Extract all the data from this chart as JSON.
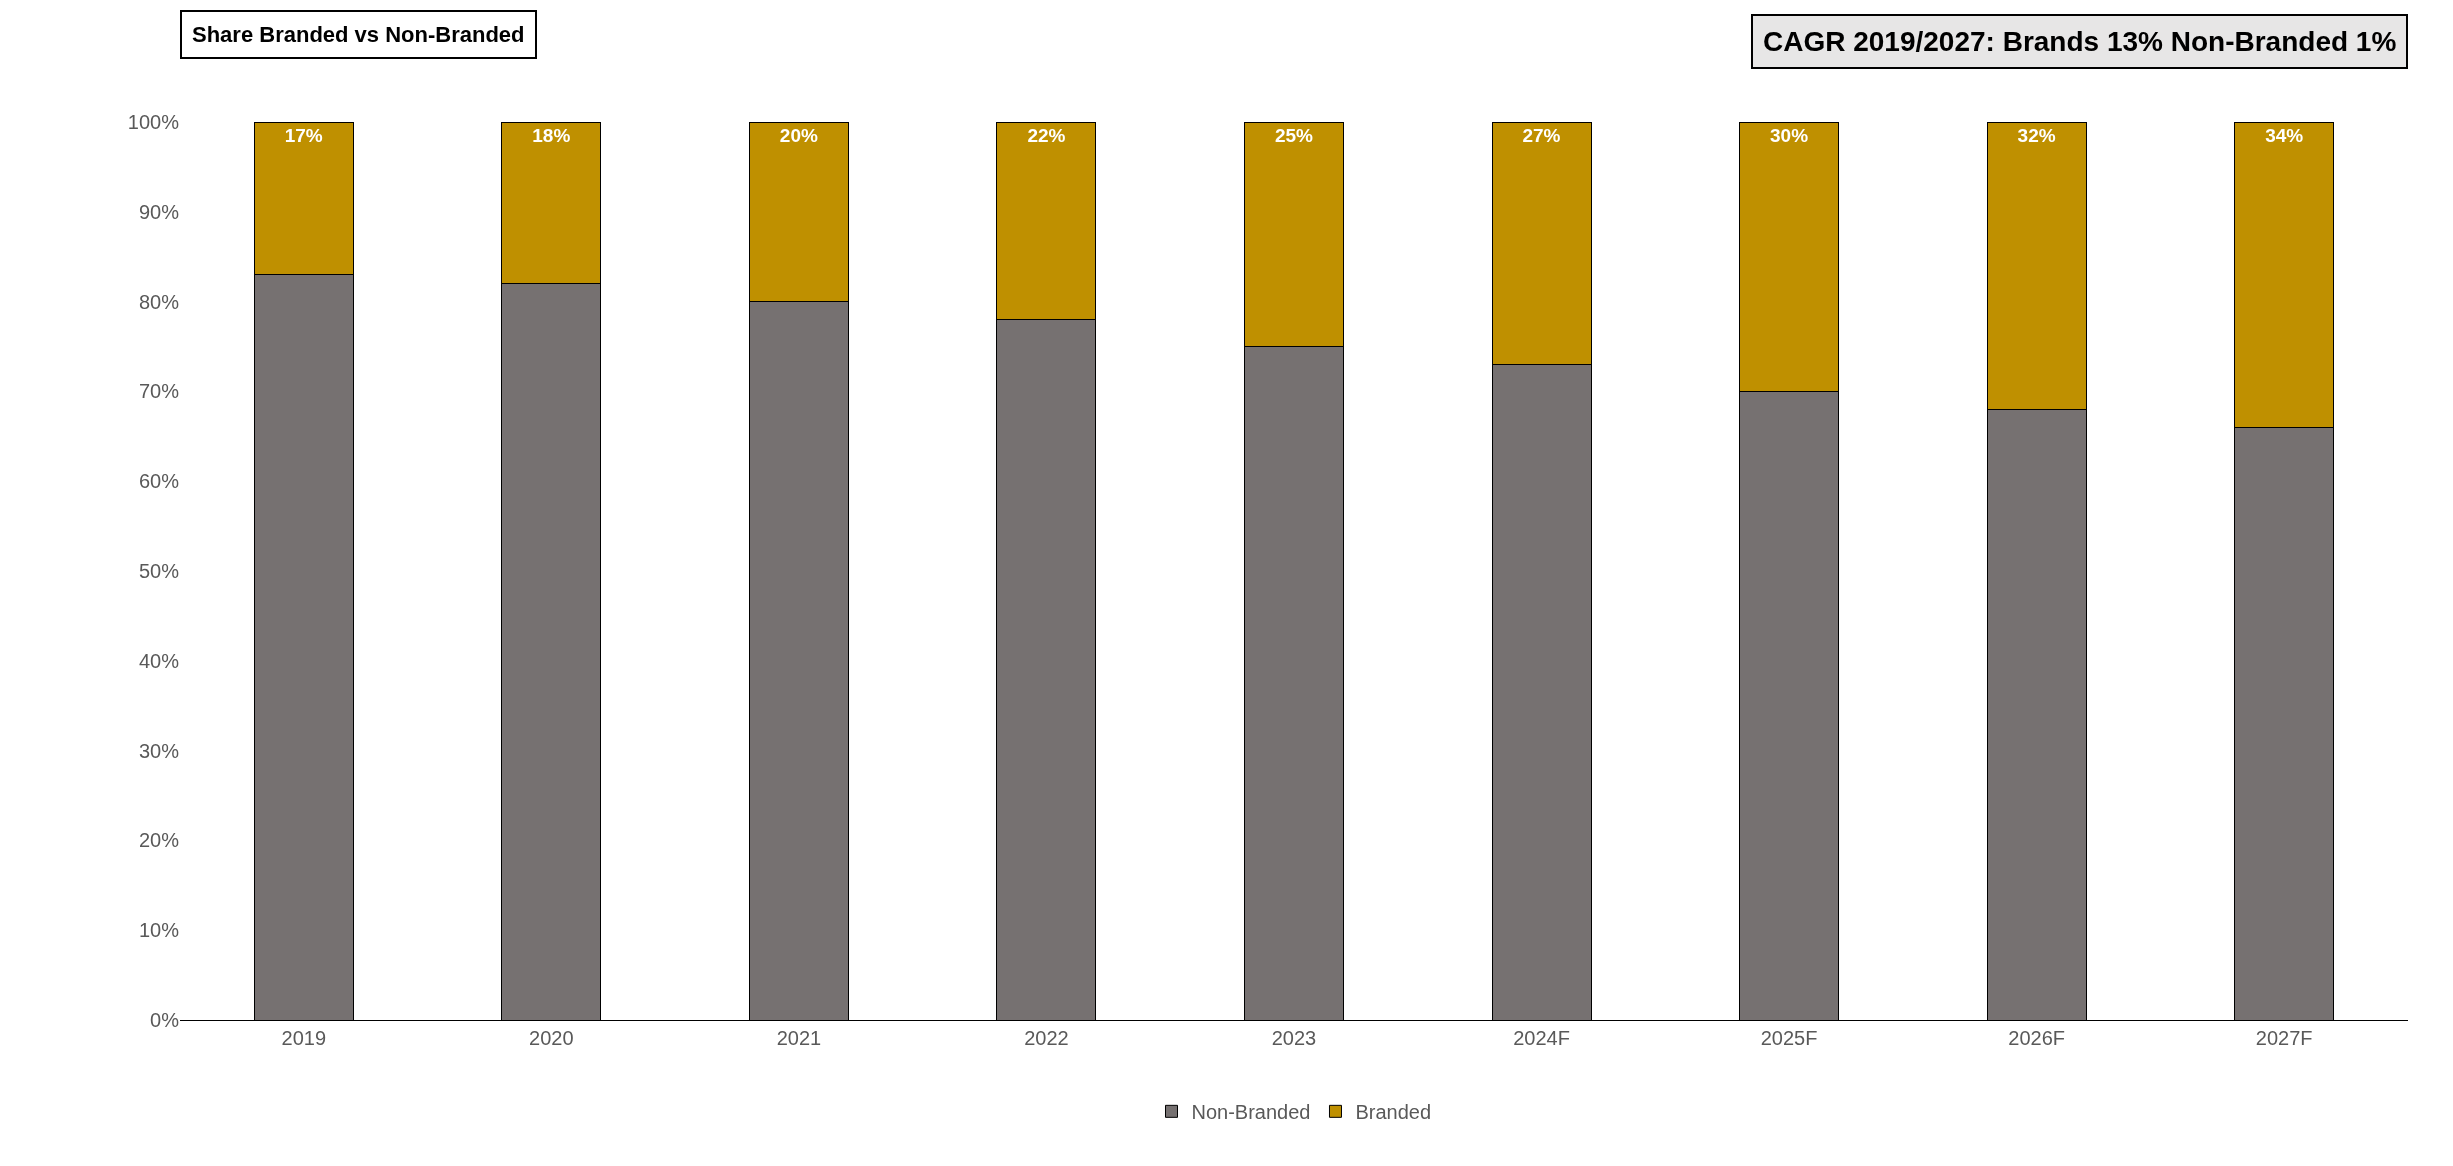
{
  "chart_data": {
    "type": "bar",
    "stacked": true,
    "title": "Share Branded vs Non-Branded",
    "annotations": [
      "CAGR 2019/2027: Brands 13% Non-Branded 1%"
    ],
    "categories": [
      "2019",
      "2020",
      "2021",
      "2022",
      "2023",
      "2024F",
      "2025F",
      "2026F",
      "2027F"
    ],
    "series": [
      {
        "name": "Non-Branded",
        "color": "#767171",
        "values": [
          83,
          82,
          80,
          78,
          75,
          73,
          70,
          68,
          66
        ]
      },
      {
        "name": "Branded",
        "color": "#bf9000",
        "values": [
          17,
          18,
          20,
          22,
          25,
          27,
          30,
          32,
          34
        ],
        "value_labels": [
          "17%",
          "18%",
          "20%",
          "22%",
          "25%",
          "27%",
          "30%",
          "32%",
          "34%"
        ]
      }
    ],
    "ylim": [
      0,
      100
    ],
    "yticks": [
      {
        "value": 0,
        "label": "0%"
      },
      {
        "value": 10,
        "label": "10%"
      },
      {
        "value": 20,
        "label": "20%"
      },
      {
        "value": 30,
        "label": "30%"
      },
      {
        "value": 40,
        "label": "40%"
      },
      {
        "value": 50,
        "label": "50%"
      },
      {
        "value": 60,
        "label": "60%"
      },
      {
        "value": 70,
        "label": "70%"
      },
      {
        "value": 80,
        "label": "80%"
      },
      {
        "value": 90,
        "label": "90%"
      },
      {
        "value": 100,
        "label": "100%"
      }
    ],
    "legend": "bottom"
  }
}
